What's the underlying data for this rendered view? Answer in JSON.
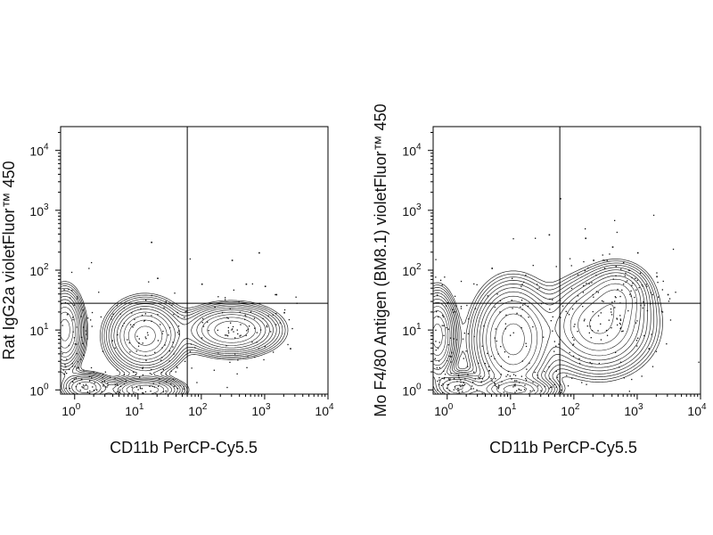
{
  "chart_data": [
    {
      "type": "contour",
      "ylabel": "Rat IgG2a violetFluor™ 450",
      "xlabel": "CD11b PerCP-Cy5.5",
      "x_scale": "log",
      "y_scale": "log",
      "xlim": [
        0.6,
        10000
      ],
      "ylim": [
        0.85,
        25000
      ],
      "x_ticks": [
        "10^0",
        "10^1",
        "10^2",
        "10^3",
        "10^4"
      ],
      "y_ticks": [
        "10^0",
        "10^1",
        "10^2",
        "10^3",
        "10^4"
      ],
      "quadrant_gate": {
        "x": 60,
        "y": 28
      },
      "populations": [
        {
          "x": 0.7,
          "y": 10,
          "sx": 0.14,
          "sy": 0.32,
          "peak": 1.0
        },
        {
          "x": 13,
          "y": 8,
          "sx": 0.28,
          "sy": 0.28,
          "peak": 1.0
        },
        {
          "x": 300,
          "y": 10,
          "sx": 0.36,
          "sy": 0.2,
          "peak": 0.85
        },
        {
          "x": 13,
          "y": 1.0,
          "sx": 0.28,
          "sy": 0.1,
          "peak": 0.85
        },
        {
          "x": 1.5,
          "y": 1.1,
          "sx": 0.2,
          "sy": 0.12,
          "peak": 0.5
        }
      ],
      "scatter_points": [
        {
          "x": 16,
          "y": 300
        },
        {
          "x": 300,
          "y": 150
        },
        {
          "x": 800,
          "y": 200
        },
        {
          "x": 20,
          "y": 75
        },
        {
          "x": 100,
          "y": 60
        },
        {
          "x": 500,
          "y": 60
        },
        {
          "x": 1000,
          "y": 55
        },
        {
          "x": 1500,
          "y": 40
        },
        {
          "x": 2000,
          "y": 20
        },
        {
          "x": 2500,
          "y": 5
        }
      ]
    },
    {
      "type": "contour",
      "ylabel": "Mo F4/80 Antigen (BM8.1) violetFluor™ 450",
      "xlabel": "CD11b PerCP-Cy5.5",
      "x_scale": "log",
      "y_scale": "log",
      "xlim": [
        0.6,
        10000
      ],
      "ylim": [
        0.85,
        25000
      ],
      "x_ticks": [
        "10^0",
        "10^1",
        "10^2",
        "10^3",
        "10^4"
      ],
      "y_ticks": [
        "10^0",
        "10^1",
        "10^2",
        "10^3",
        "10^4"
      ],
      "quadrant_gate": {
        "x": 60,
        "y": 28
      },
      "populations": [
        {
          "x": 0.7,
          "y": 8,
          "sx": 0.14,
          "sy": 0.35,
          "peak": 1.0
        },
        {
          "x": 11,
          "y": 7,
          "sx": 0.3,
          "sy": 0.45,
          "peak": 1.0
        },
        {
          "x": 250,
          "y": 12,
          "sx": 0.4,
          "sy": 0.38,
          "peak": 0.9
        },
        {
          "x": 500,
          "y": 40,
          "sx": 0.25,
          "sy": 0.25,
          "peak": 0.45
        },
        {
          "x": 12,
          "y": 1.0,
          "sx": 0.3,
          "sy": 0.1,
          "peak": 0.85
        },
        {
          "x": 1.5,
          "y": 1.1,
          "sx": 0.2,
          "sy": 0.12,
          "peak": 0.5
        }
      ],
      "scatter_points": [
        {
          "x": 40,
          "y": 400
        },
        {
          "x": 60,
          "y": 1600
        },
        {
          "x": 150,
          "y": 350
        },
        {
          "x": 400,
          "y": 250
        },
        {
          "x": 1000,
          "y": 200
        },
        {
          "x": 5,
          "y": 110
        },
        {
          "x": 2000,
          "y": 80
        },
        {
          "x": 200,
          "y": 150
        },
        {
          "x": 3000,
          "y": 40
        },
        {
          "x": 1500,
          "y": 5
        }
      ]
    }
  ]
}
